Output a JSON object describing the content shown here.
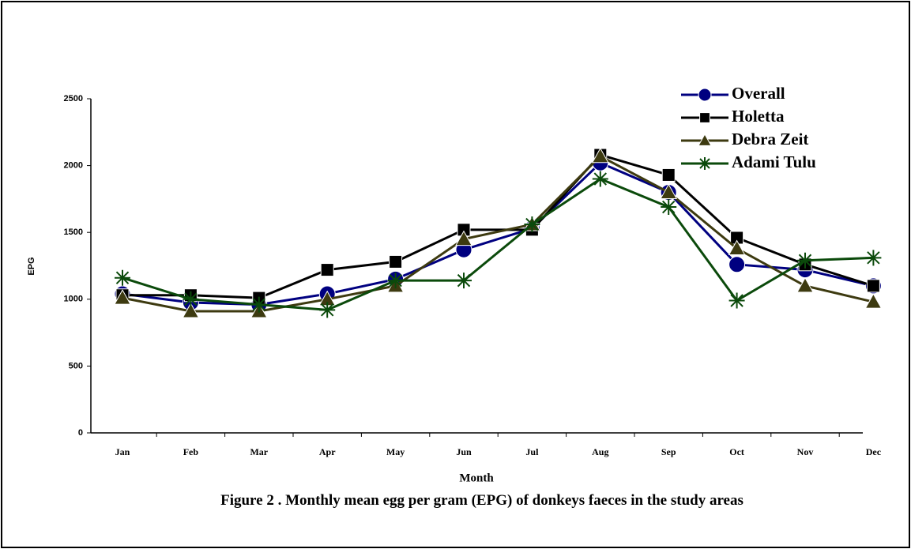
{
  "chart_data": {
    "type": "line",
    "caption": "Figure 2 .  Monthly mean egg per gram (EPG) of donkeys faeces in the study areas",
    "x_label": "Month",
    "y_label": "EPG",
    "categories": [
      "Jan",
      "Feb",
      "Mar",
      "Apr",
      "May",
      "Jun",
      "Jul",
      "Aug",
      "Sep",
      "Oct",
      "Nov",
      "Dec"
    ],
    "ylim": [
      0,
      2500
    ],
    "yticks": [
      0,
      500,
      1000,
      1500,
      2000,
      2500
    ],
    "legend": "upper right",
    "series": [
      {
        "name": "Overall",
        "color": "#000080",
        "marker": "circle",
        "values": [
          1040,
          975,
          960,
          1040,
          1150,
          1370,
          1530,
          2020,
          1800,
          1260,
          1220,
          1100
        ]
      },
      {
        "name": "Holetta",
        "color": "#000000",
        "marker": "square",
        "values": [
          1030,
          1030,
          1010,
          1220,
          1280,
          1520,
          1520,
          2080,
          1930,
          1460,
          1260,
          1100
        ]
      },
      {
        "name": "Debra Zeit",
        "color": "#3d3a10",
        "marker": "triangle",
        "values": [
          1010,
          910,
          910,
          1000,
          1100,
          1450,
          1560,
          2070,
          1800,
          1380,
          1100,
          980
        ]
      },
      {
        "name": "Adami Tulu",
        "color": "#0b4a0b",
        "marker": "star",
        "values": [
          1160,
          1000,
          960,
          920,
          1140,
          1140,
          1560,
          1900,
          1690,
          990,
          1290,
          1310
        ]
      }
    ]
  }
}
